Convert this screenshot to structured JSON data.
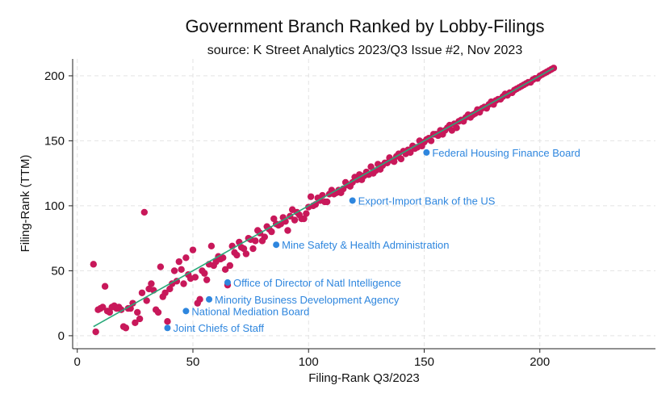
{
  "chart_data": {
    "type": "scatter",
    "title": "Government Branch Ranked by Lobby-Filings",
    "subtitle": "source: K Street Analytics 2023/Q3 Issue #2, Nov 2023",
    "xlabel": "Filing-Rank Q3/2023",
    "ylabel": "Filing-Rank (TTM)",
    "xlim": [
      -2,
      250
    ],
    "ylim": [
      -10,
      213
    ],
    "xticks": [
      0,
      50,
      100,
      150,
      200
    ],
    "yticks": [
      0,
      50,
      100,
      150,
      200
    ],
    "grid": true,
    "legend": "none",
    "colors": {
      "points": "#c8185a",
      "highlight": "#2e86de",
      "fit_line": "#2aa97a"
    },
    "fit_line": {
      "x": [
        7,
        206
      ],
      "y": [
        7,
        206
      ]
    },
    "series": [
      {
        "points": [
          [
            7,
            55
          ],
          [
            8,
            3
          ],
          [
            9,
            20
          ],
          [
            10,
            21
          ],
          [
            11,
            22
          ],
          [
            12,
            38
          ],
          [
            13,
            19
          ],
          [
            14,
            18
          ],
          [
            15,
            22
          ],
          [
            16,
            23
          ],
          [
            17,
            21
          ],
          [
            18,
            22
          ],
          [
            19,
            20
          ],
          [
            20,
            7
          ],
          [
            21,
            6
          ],
          [
            22,
            21
          ],
          [
            23,
            21
          ],
          [
            24,
            25
          ],
          [
            25,
            10
          ],
          [
            26,
            18
          ],
          [
            27,
            13
          ],
          [
            28,
            33
          ],
          [
            29,
            95
          ],
          [
            30,
            27
          ],
          [
            31,
            36
          ],
          [
            32,
            40
          ],
          [
            33,
            35
          ],
          [
            34,
            20
          ],
          [
            35,
            18
          ],
          [
            36,
            53
          ],
          [
            37,
            30
          ],
          [
            38,
            33
          ],
          [
            39,
            11
          ],
          [
            40,
            36
          ],
          [
            41,
            40
          ],
          [
            42,
            50
          ],
          [
            43,
            42
          ],
          [
            44,
            57
          ],
          [
            45,
            51
          ],
          [
            46,
            40
          ],
          [
            47,
            60
          ],
          [
            48,
            47
          ],
          [
            49,
            44
          ],
          [
            50,
            66
          ],
          [
            51,
            45
          ],
          [
            52,
            25
          ],
          [
            53,
            28
          ],
          [
            54,
            50
          ],
          [
            55,
            48
          ],
          [
            56,
            43
          ],
          [
            57,
            55
          ],
          [
            58,
            69
          ],
          [
            59,
            54
          ],
          [
            60,
            57
          ],
          [
            61,
            61
          ],
          [
            62,
            59
          ],
          [
            63,
            60
          ],
          [
            64,
            51
          ],
          [
            65,
            39
          ],
          [
            66,
            54
          ],
          [
            67,
            69
          ],
          [
            68,
            64
          ],
          [
            69,
            62
          ],
          [
            70,
            72
          ],
          [
            71,
            68
          ],
          [
            72,
            67
          ],
          [
            73,
            63
          ],
          [
            74,
            75
          ],
          [
            75,
            74
          ],
          [
            76,
            67
          ],
          [
            77,
            73
          ],
          [
            78,
            81
          ],
          [
            79,
            79
          ],
          [
            80,
            73
          ],
          [
            81,
            76
          ],
          [
            82,
            84
          ],
          [
            83,
            82
          ],
          [
            84,
            80
          ],
          [
            85,
            90
          ],
          [
            86,
            86
          ],
          [
            87,
            85
          ],
          [
            88,
            86
          ],
          [
            89,
            91
          ],
          [
            90,
            88
          ],
          [
            91,
            81
          ],
          [
            92,
            92
          ],
          [
            93,
            97
          ],
          [
            94,
            89
          ],
          [
            95,
            95
          ],
          [
            96,
            93
          ],
          [
            97,
            90
          ],
          [
            98,
            90
          ],
          [
            99,
            94
          ],
          [
            100,
            99
          ],
          [
            101,
            107
          ],
          [
            102,
            100
          ],
          [
            103,
            101
          ],
          [
            104,
            106
          ],
          [
            105,
            104
          ],
          [
            106,
            108
          ],
          [
            107,
            103
          ],
          [
            108,
            103
          ],
          [
            109,
            109
          ],
          [
            110,
            112
          ],
          [
            111,
            109
          ],
          [
            112,
            110
          ],
          [
            113,
            112
          ],
          [
            114,
            110
          ],
          [
            115,
            113
          ],
          [
            116,
            118
          ],
          [
            117,
            116
          ],
          [
            118,
            115
          ],
          [
            119,
            118
          ],
          [
            120,
            122
          ],
          [
            121,
            120
          ],
          [
            122,
            124
          ],
          [
            123,
            120
          ],
          [
            124,
            123
          ],
          [
            125,
            126
          ],
          [
            126,
            124
          ],
          [
            127,
            130
          ],
          [
            128,
            125
          ],
          [
            129,
            127
          ],
          [
            130,
            132
          ],
          [
            131,
            128
          ],
          [
            132,
            131
          ],
          [
            133,
            133
          ],
          [
            134,
            133
          ],
          [
            135,
            137
          ],
          [
            136,
            135
          ],
          [
            137,
            134
          ],
          [
            138,
            138
          ],
          [
            139,
            140
          ],
          [
            140,
            136
          ],
          [
            141,
            142
          ],
          [
            142,
            140
          ],
          [
            143,
            143
          ],
          [
            144,
            141
          ],
          [
            145,
            146
          ],
          [
            146,
            144
          ],
          [
            147,
            145
          ],
          [
            148,
            150
          ],
          [
            149,
            146
          ],
          [
            150,
            149
          ],
          [
            151,
            151
          ],
          [
            152,
            152
          ],
          [
            153,
            150
          ],
          [
            154,
            155
          ],
          [
            155,
            155
          ],
          [
            156,
            154
          ],
          [
            157,
            158
          ],
          [
            158,
            155
          ],
          [
            159,
            158
          ],
          [
            160,
            160
          ],
          [
            161,
            162
          ],
          [
            162,
            158
          ],
          [
            163,
            163
          ],
          [
            164,
            160
          ],
          [
            165,
            165
          ],
          [
            166,
            166
          ],
          [
            167,
            165
          ],
          [
            168,
            168
          ],
          [
            169,
            170
          ],
          [
            170,
            168
          ],
          [
            171,
            170
          ],
          [
            172,
            171
          ],
          [
            173,
            174
          ],
          [
            174,
            172
          ],
          [
            175,
            175
          ],
          [
            176,
            176
          ],
          [
            177,
            175
          ],
          [
            178,
            178
          ],
          [
            179,
            180
          ],
          [
            180,
            178
          ],
          [
            181,
            181
          ],
          [
            182,
            182
          ],
          [
            183,
            182
          ],
          [
            184,
            184
          ],
          [
            185,
            186
          ],
          [
            186,
            185
          ],
          [
            187,
            187
          ],
          [
            188,
            187
          ],
          [
            189,
            189
          ],
          [
            190,
            190
          ],
          [
            191,
            191
          ],
          [
            192,
            192
          ],
          [
            193,
            193
          ],
          [
            194,
            194
          ],
          [
            195,
            195
          ],
          [
            196,
            195
          ],
          [
            197,
            197
          ],
          [
            198,
            198
          ],
          [
            199,
            198
          ],
          [
            200,
            200
          ],
          [
            201,
            201
          ],
          [
            202,
            202
          ],
          [
            203,
            203
          ],
          [
            204,
            204
          ],
          [
            205,
            205
          ],
          [
            206,
            206
          ]
        ]
      }
    ],
    "annotations": [
      {
        "label": "Federal Housing Finance Board",
        "x": 151,
        "y": 141
      },
      {
        "label": "Export-Import Bank of the US",
        "x": 119,
        "y": 104
      },
      {
        "label": "Mine Safety & Health Administration",
        "x": 86,
        "y": 70
      },
      {
        "label": "Office of Director of Natl Intelligence",
        "x": 65,
        "y": 41
      },
      {
        "label": "Minority Business Development Agency",
        "x": 57,
        "y": 28
      },
      {
        "label": "National Mediation Board",
        "x": 47,
        "y": 19
      },
      {
        "label": "Joint Chiefs of Staff",
        "x": 39,
        "y": 6
      }
    ]
  }
}
